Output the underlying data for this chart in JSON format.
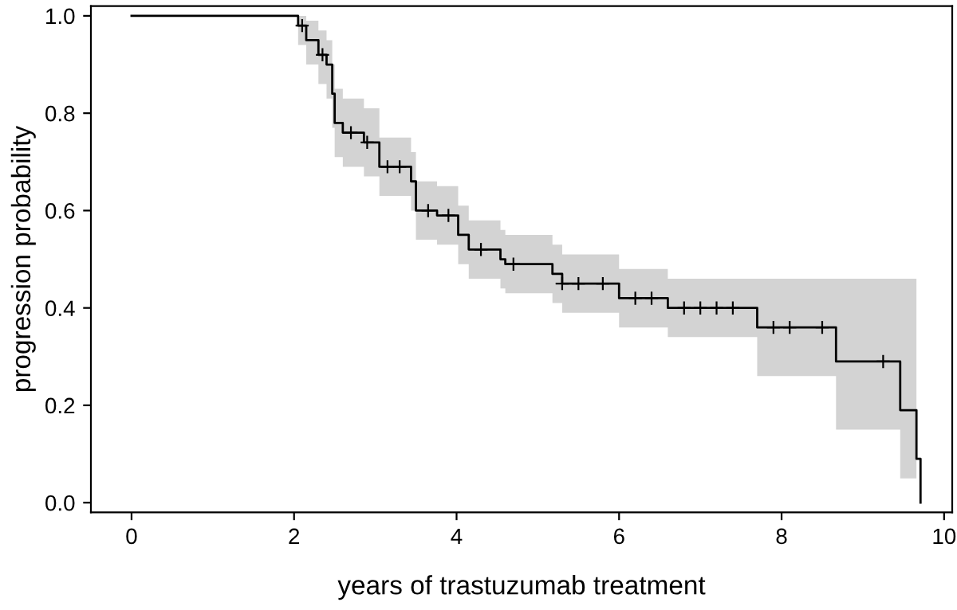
{
  "chart_data": {
    "type": "step",
    "xlabel": "years of trastuzumab treatment",
    "ylabel": "progression probability",
    "xlim": [
      -0.5,
      10.1
    ],
    "ylim": [
      -0.02,
      1.02
    ],
    "xticks": [
      0,
      2,
      4,
      6,
      8,
      10
    ],
    "yticks": [
      {
        "value": 0,
        "label": "0.0"
      },
      {
        "value": 0.2,
        "label": "0.2"
      },
      {
        "value": 0.4,
        "label": "0.4"
      },
      {
        "value": 0.6,
        "label": "0.6"
      },
      {
        "value": 0.8,
        "label": "0.8"
      },
      {
        "value": 1,
        "label": "1.0"
      }
    ],
    "grid": false,
    "legend": false,
    "series": [
      {
        "color": "#000000",
        "marker": "none",
        "x": [
          0,
          2.05,
          2.15,
          2.3,
          2.4,
          2.47,
          2.5,
          2.6,
          2.86,
          3.05,
          3.44,
          3.5,
          3.76,
          4.02,
          4.15,
          4.54,
          4.6,
          5.18,
          5.3,
          6.0,
          6.6,
          7.7,
          8.67,
          9.46,
          9.66,
          9.71
        ],
        "values": [
          1.0,
          0.98,
          0.95,
          0.92,
          0.9,
          0.84,
          0.78,
          0.76,
          0.74,
          0.69,
          0.66,
          0.6,
          0.59,
          0.55,
          0.52,
          0.5,
          0.49,
          0.47,
          0.45,
          0.42,
          0.4,
          0.36,
          0.29,
          0.19,
          0.09,
          0.0
        ],
        "lower": [
          1.0,
          0.94,
          0.9,
          0.86,
          0.83,
          0.77,
          0.71,
          0.69,
          0.67,
          0.63,
          0.6,
          0.54,
          0.53,
          0.49,
          0.46,
          0.44,
          0.43,
          0.41,
          0.39,
          0.36,
          0.34,
          0.26,
          0.15,
          0.05,
          0.0,
          null
        ],
        "upper": [
          1.0,
          1.0,
          0.99,
          0.97,
          0.95,
          0.9,
          0.85,
          0.83,
          0.81,
          0.75,
          0.72,
          0.66,
          0.65,
          0.61,
          0.58,
          0.56,
          0.55,
          0.53,
          0.51,
          0.48,
          0.46,
          0.46,
          0.46,
          0.46,
          0.46,
          null
        ]
      },
      {
        "type": "scatter",
        "color": "#000000",
        "marker": "cross",
        "x": [
          2.1,
          2.35,
          2.7,
          2.9,
          3.15,
          3.3,
          3.65,
          3.9,
          4.3,
          4.7,
          5.3,
          5.5,
          5.8,
          6.2,
          6.4,
          6.8,
          7.0,
          7.2,
          7.4,
          7.9,
          8.1,
          8.5,
          9.25
        ],
        "values": [
          0.98,
          0.92,
          0.76,
          0.74,
          0.69,
          0.69,
          0.6,
          0.59,
          0.52,
          0.49,
          0.45,
          0.45,
          0.45,
          0.42,
          0.42,
          0.4,
          0.4,
          0.4,
          0.4,
          0.36,
          0.36,
          0.36,
          0.29
        ]
      }
    ]
  }
}
